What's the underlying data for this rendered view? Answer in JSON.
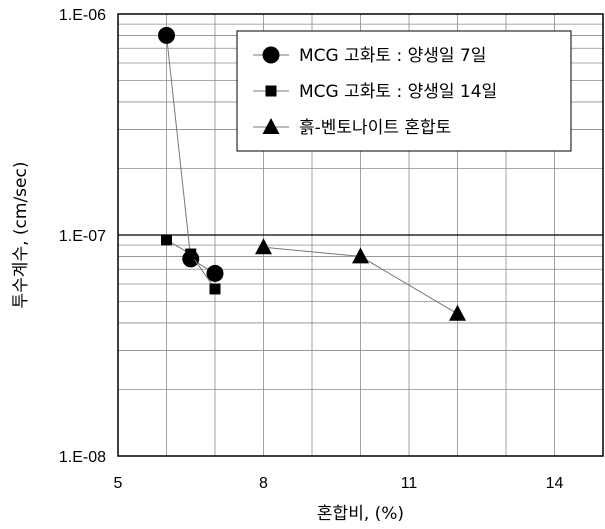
{
  "chart_data": {
    "type": "scatter",
    "xlabel": "혼합비, (%)",
    "ylabel": "투수계수, (cm/sec)",
    "x_ticks": [
      5,
      8,
      11,
      14
    ],
    "y_ticks": [
      "1.E-06",
      "1.E-07",
      "1.E-08"
    ],
    "xlim": [
      5,
      15
    ],
    "ylim": [
      1e-08,
      1e-06
    ],
    "y_scale": "log",
    "grid": true,
    "legend_position": "top-right",
    "series": [
      {
        "name": "MCG 고화토 : 양생일 7일",
        "marker": "circle",
        "x": [
          6.0,
          6.5,
          7.0
        ],
        "y": [
          8e-07,
          7.8e-08,
          6.7e-08
        ]
      },
      {
        "name": "MCG 고화토 : 양생일 14일",
        "marker": "square",
        "x": [
          6.0,
          6.5,
          7.0
        ],
        "y": [
          9.5e-08,
          8.2e-08,
          5.7e-08
        ]
      },
      {
        "name": "흙-벤토나이트 혼합토",
        "marker": "triangle",
        "x": [
          8.0,
          10.0,
          12.0
        ],
        "y": [
          8.8e-08,
          8e-08,
          4.4e-08
        ]
      }
    ]
  }
}
